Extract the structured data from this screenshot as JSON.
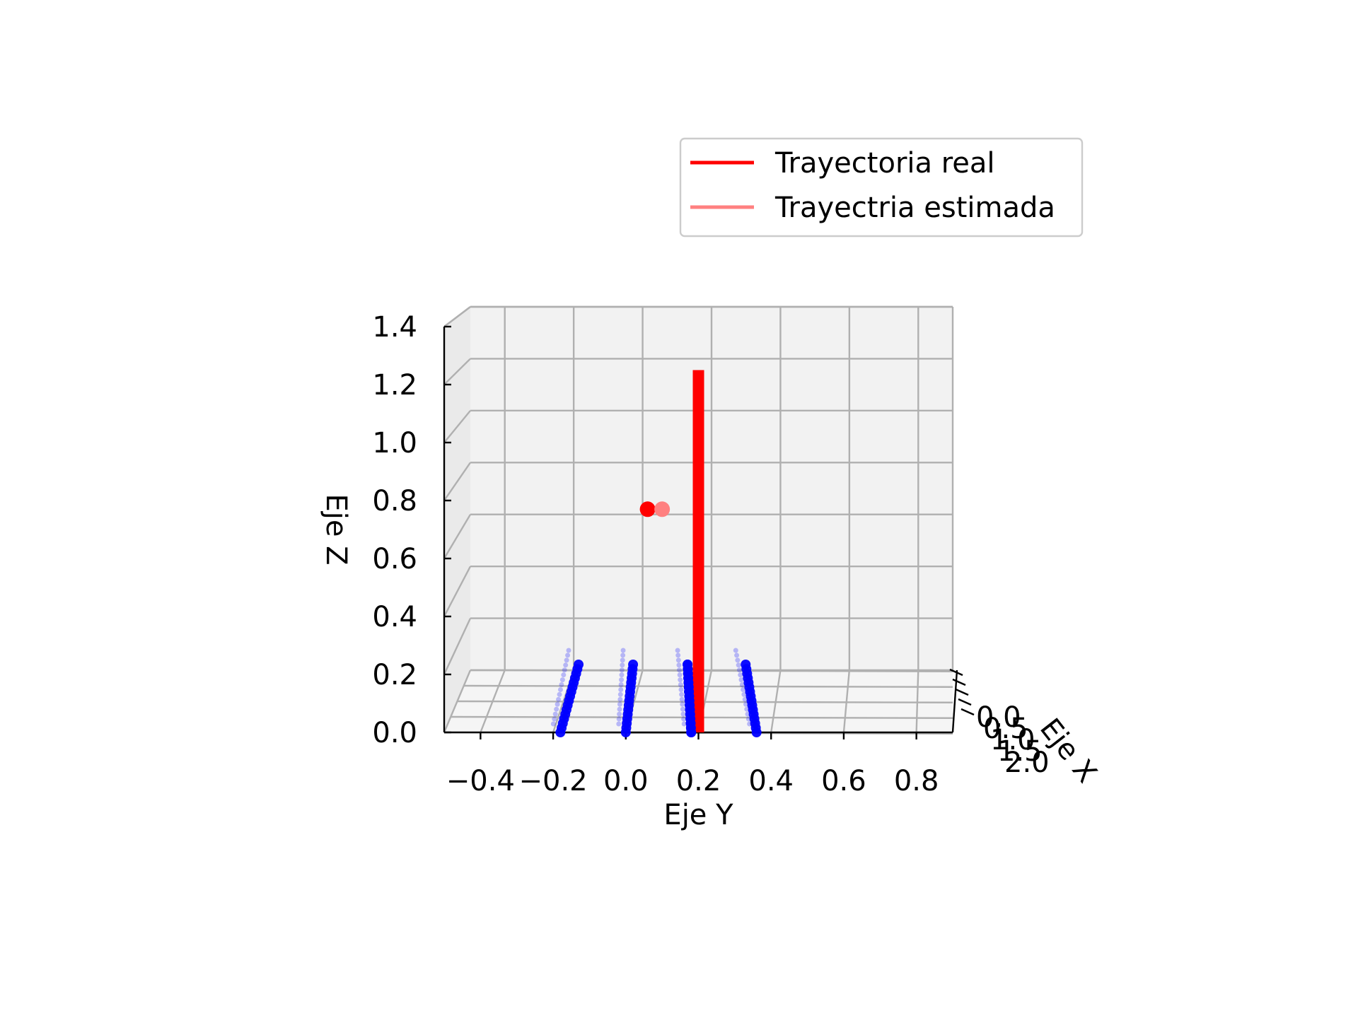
{
  "chart_data": {
    "type": "line",
    "projection": "3d",
    "xlabel": "Eje Y",
    "ylabel": "Eje Z",
    "zlabel": "Eje X",
    "xlim": [
      -0.5,
      0.9
    ],
    "ylim": [
      0.0,
      1.4
    ],
    "x_ticks": [
      -0.4,
      -0.2,
      0.0,
      0.2,
      0.4,
      0.6,
      0.8
    ],
    "x_tick_labels": [
      "−0.4",
      "−0.2",
      "0.0",
      "0.2",
      "0.4",
      "0.6",
      "0.8"
    ],
    "y_ticks": [
      0.0,
      0.2,
      0.4,
      0.6,
      0.8,
      1.0,
      1.2,
      1.4
    ],
    "y_tick_labels": [
      "0.0",
      "0.2",
      "0.4",
      "0.6",
      "0.8",
      "1.0",
      "1.2",
      "1.4"
    ],
    "depth_tick_labels": [
      "0.0",
      "0.5",
      "1.0",
      "1.5",
      "2.0"
    ],
    "grid": true,
    "legend_position": "top-right",
    "legend": [
      {
        "label": "Trayectoria real",
        "color": "#ff0000"
      },
      {
        "label": "Trayectria estimada",
        "color": "#ff8080"
      }
    ],
    "series": [
      {
        "name": "Trayectoria real",
        "color": "#ff0000",
        "points": [
          {
            "y": 0.2,
            "z": 0.0
          },
          {
            "y": 0.2,
            "z": 1.25
          }
        ]
      }
    ],
    "markers": [
      {
        "y": 0.06,
        "z": 0.77,
        "color": "#ff0000"
      },
      {
        "y": 0.1,
        "z": 0.77,
        "color": "#ff8080"
      }
    ],
    "blue_columns": [
      {
        "y_base": -0.18,
        "y_top": -0.13
      },
      {
        "y_base": 0.0,
        "y_top": 0.02
      },
      {
        "y_base": 0.18,
        "y_top": 0.17
      },
      {
        "y_base": 0.36,
        "y_top": 0.33
      }
    ],
    "blue_color": "#0000ff"
  }
}
